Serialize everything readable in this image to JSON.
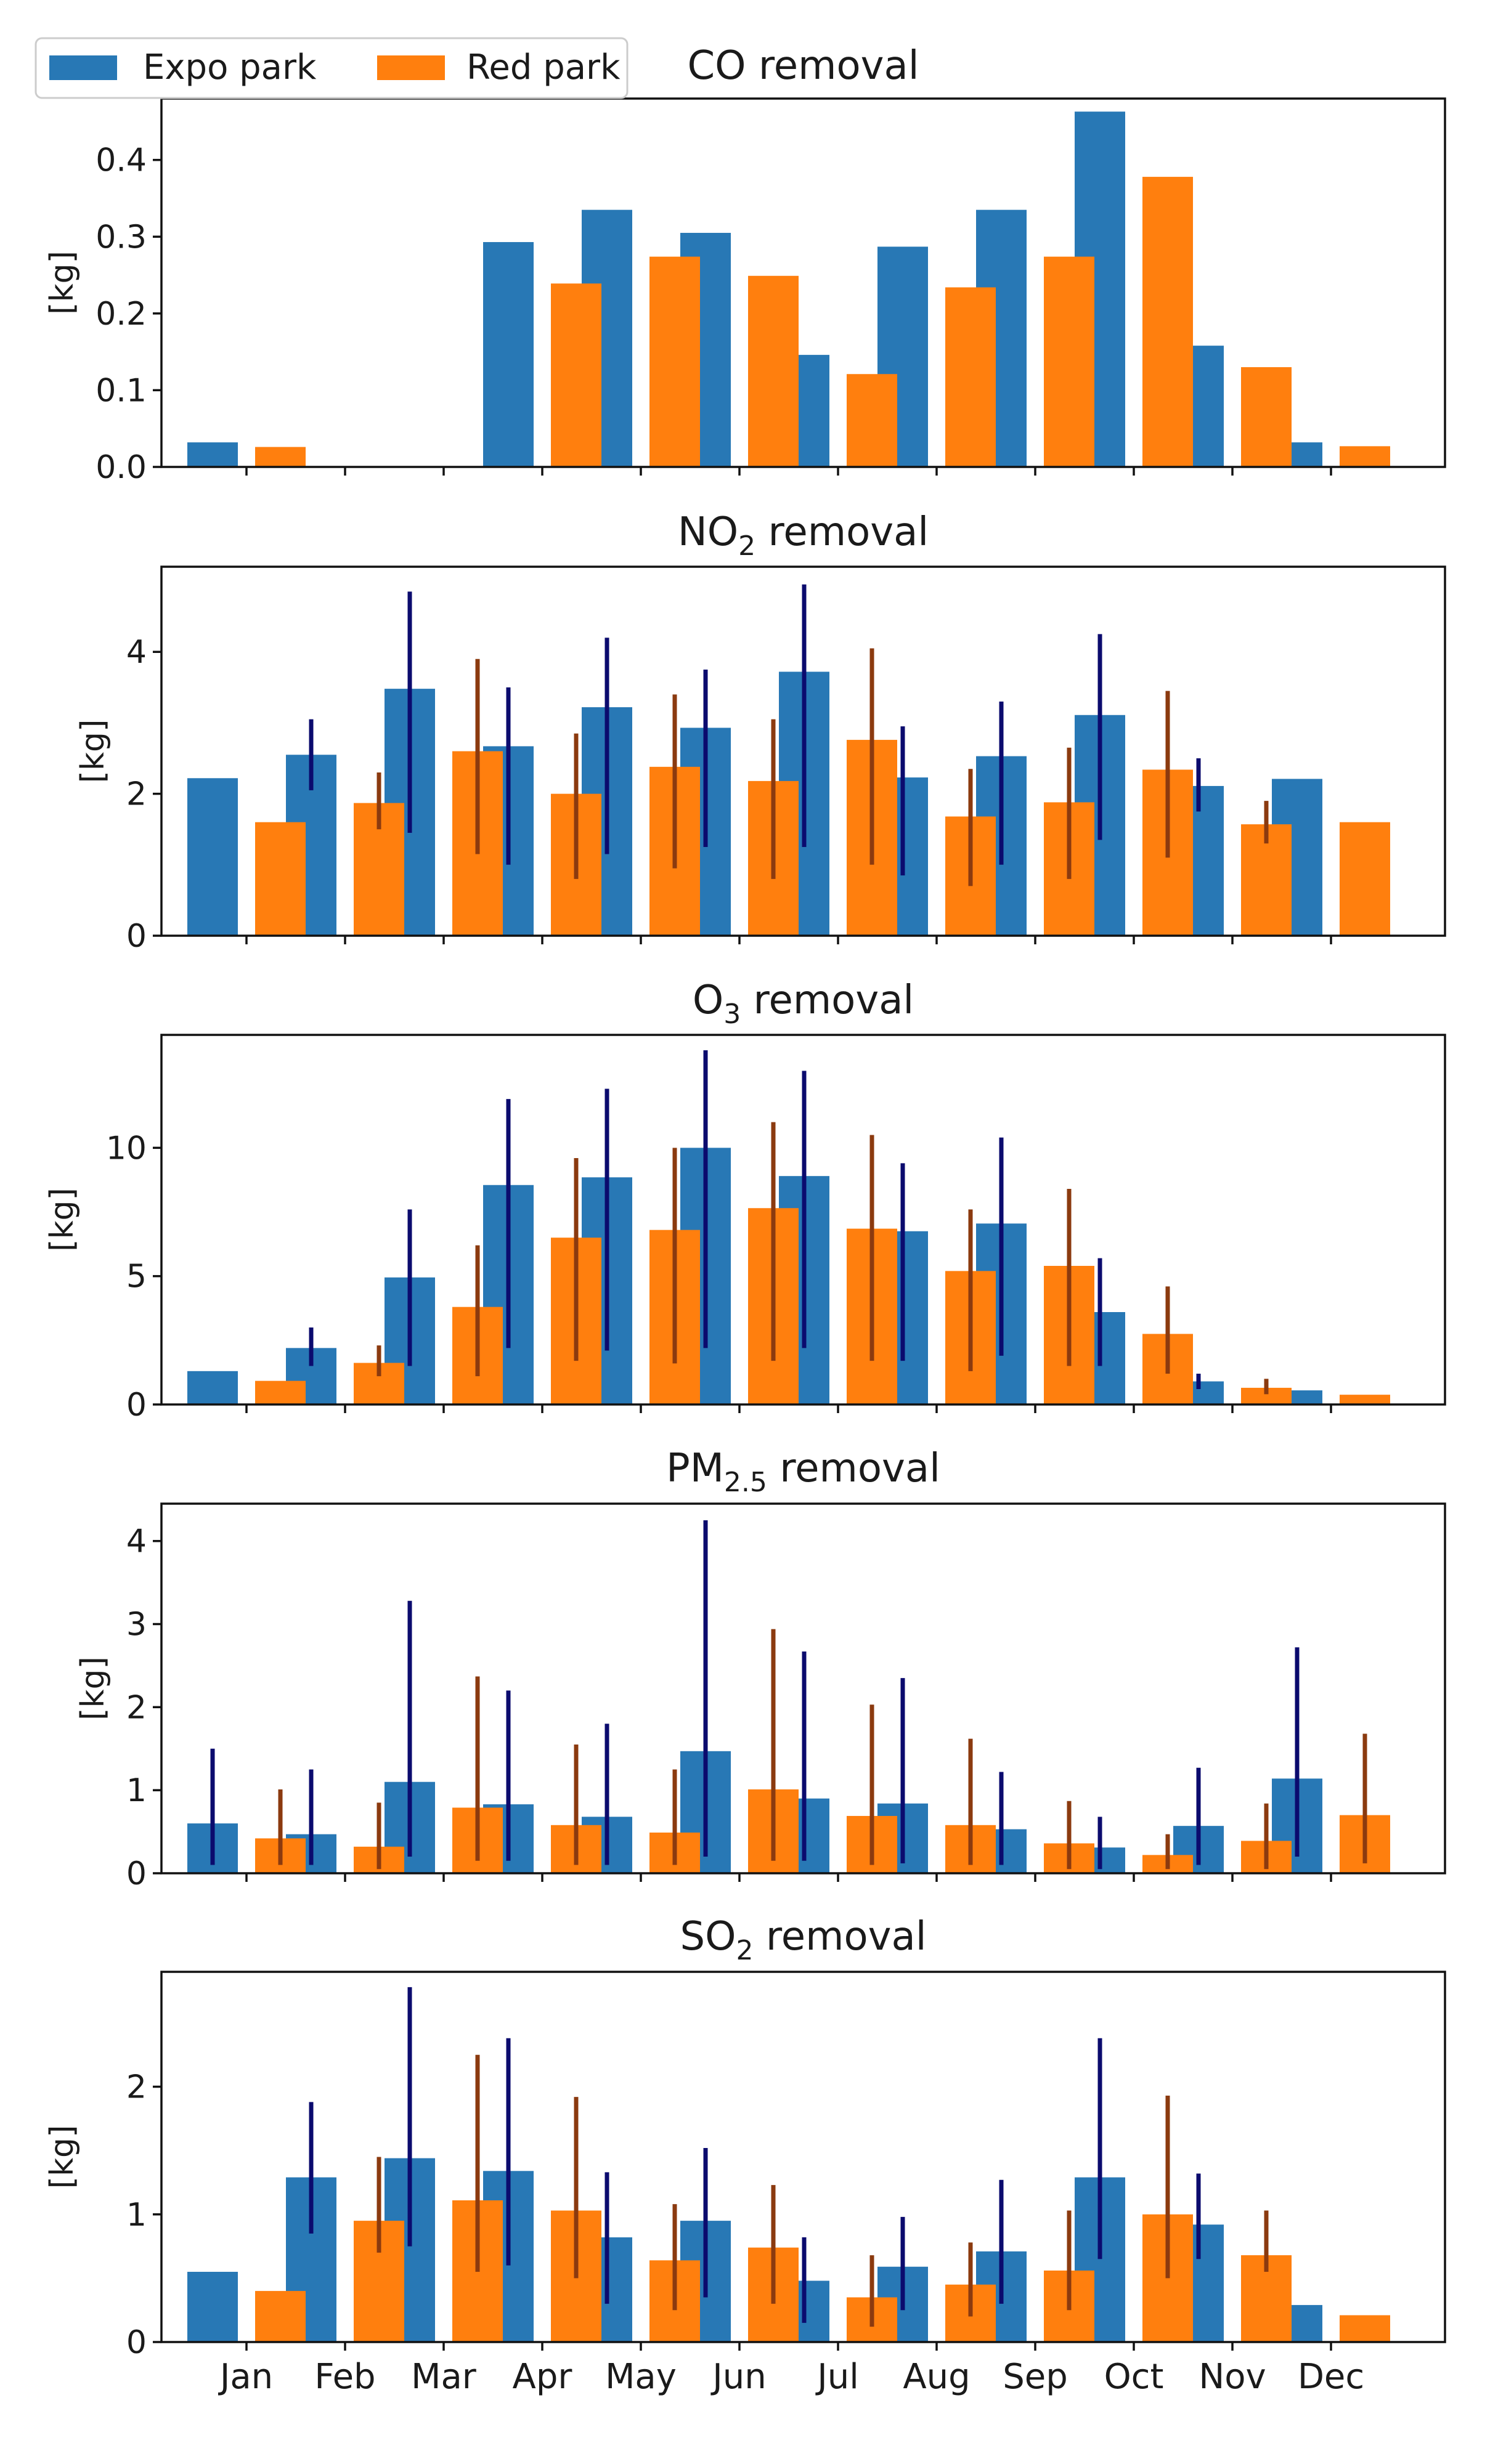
{
  "colors": {
    "expo": "#2878b5",
    "red": "#ff7f0e",
    "expo_err": "#0b0b6e",
    "red_err": "#8b3a0f"
  },
  "legend": {
    "expo_label": "Expo park",
    "red_label": "Red park",
    "placement": "upper-left of first panel"
  },
  "months": [
    "Jan",
    "Feb",
    "Mar",
    "Apr",
    "May",
    "Jun",
    "Jul",
    "Aug",
    "Sep",
    "Oct",
    "Nov",
    "Dec"
  ],
  "chart_data": [
    {
      "type": "bar",
      "title_main": "CO removal",
      "title_sub": "",
      "title_after": "",
      "ylabel": "[kg]",
      "ylim": [
        0,
        0.48
      ],
      "yticks": [
        0.0,
        0.1,
        0.2,
        0.3,
        0.4
      ],
      "ytick_labels": [
        "0.0",
        "0.1",
        "0.2",
        "0.3",
        "0.4"
      ],
      "series": [
        {
          "name": "Expo park",
          "values": [
            0.032,
            0,
            0,
            0.293,
            0.335,
            0.305,
            0.146,
            0.287,
            0.335,
            0.463,
            0.158,
            0.032
          ],
          "err_low": [
            null,
            null,
            null,
            null,
            null,
            null,
            null,
            null,
            null,
            null,
            null,
            null
          ],
          "err_high": [
            null,
            null,
            null,
            null,
            null,
            null,
            null,
            null,
            null,
            null,
            null,
            null
          ]
        },
        {
          "name": "Red park",
          "values": [
            0.026,
            0,
            0,
            0.239,
            0.274,
            0.249,
            0.121,
            0.234,
            0.274,
            0.378,
            0.13,
            0.027
          ],
          "err_low": [
            null,
            null,
            null,
            null,
            null,
            null,
            null,
            null,
            null,
            null,
            null,
            null
          ],
          "err_high": [
            null,
            null,
            null,
            null,
            null,
            null,
            null,
            null,
            null,
            null,
            null,
            null
          ]
        }
      ]
    },
    {
      "type": "bar",
      "title_main": "NO",
      "title_sub": "2",
      "title_after": " removal",
      "ylabel": "[kg]",
      "ylim": [
        0,
        5.2
      ],
      "yticks": [
        0,
        2,
        4
      ],
      "ytick_labels": [
        "0",
        "2",
        "4"
      ],
      "series": [
        {
          "name": "Expo park",
          "values": [
            2.22,
            2.55,
            3.48,
            2.67,
            3.22,
            2.93,
            3.72,
            2.23,
            2.53,
            3.11,
            2.11,
            2.21
          ],
          "err_low": [
            null,
            2.05,
            1.45,
            1.0,
            1.15,
            1.25,
            1.25,
            0.85,
            1.0,
            1.35,
            1.75,
            null
          ],
          "err_high": [
            null,
            3.05,
            4.85,
            3.5,
            4.2,
            3.75,
            4.95,
            2.95,
            3.3,
            4.25,
            2.5,
            null
          ]
        },
        {
          "name": "Red park",
          "values": [
            1.6,
            1.87,
            2.6,
            2.0,
            2.38,
            2.18,
            2.76,
            1.68,
            1.88,
            2.34,
            1.57,
            1.6
          ],
          "err_low": [
            null,
            1.5,
            1.15,
            0.8,
            0.95,
            0.8,
            1.0,
            0.7,
            0.8,
            1.1,
            1.3,
            null
          ],
          "err_high": [
            null,
            2.3,
            3.9,
            2.85,
            3.4,
            3.05,
            4.05,
            2.35,
            2.65,
            3.45,
            1.9,
            null
          ]
        }
      ]
    },
    {
      "type": "bar",
      "title_main": "O",
      "title_sub": "3",
      "title_after": " removal",
      "ylabel": "[kg]",
      "ylim": [
        0,
        14.4
      ],
      "yticks": [
        0,
        5,
        10
      ],
      "ytick_labels": [
        "0",
        "5",
        "10"
      ],
      "series": [
        {
          "name": "Expo park",
          "values": [
            1.3,
            2.2,
            4.95,
            8.55,
            8.85,
            10.0,
            8.9,
            6.75,
            7.05,
            3.6,
            0.9,
            0.55
          ],
          "err_low": [
            null,
            1.5,
            1.5,
            2.2,
            2.1,
            2.2,
            2.2,
            1.7,
            1.9,
            1.5,
            0.6,
            null
          ],
          "err_high": [
            null,
            3.0,
            7.6,
            11.9,
            12.3,
            13.8,
            13.0,
            9.4,
            10.4,
            5.7,
            1.2,
            null
          ]
        },
        {
          "name": "Red park",
          "values": [
            0.92,
            1.62,
            3.8,
            6.5,
            6.8,
            7.65,
            6.85,
            5.2,
            5.4,
            2.75,
            0.65,
            0.38
          ],
          "err_low": [
            null,
            1.1,
            1.1,
            1.7,
            1.6,
            1.7,
            1.7,
            1.3,
            1.5,
            1.2,
            0.4,
            null
          ],
          "err_high": [
            null,
            2.3,
            6.2,
            9.6,
            10.0,
            11.0,
            10.5,
            7.6,
            8.4,
            4.6,
            1.0,
            null
          ]
        }
      ]
    },
    {
      "type": "bar",
      "title_main": "PM",
      "title_sub": "2.5",
      "title_after": " removal",
      "ylabel": "[kg]",
      "ylim": [
        0,
        4.45
      ],
      "yticks": [
        0,
        1,
        2,
        3,
        4
      ],
      "ytick_labels": [
        "0",
        "1",
        "2",
        "3",
        "4"
      ],
      "series": [
        {
          "name": "Expo park",
          "values": [
            0.6,
            0.47,
            1.1,
            0.83,
            0.68,
            1.47,
            0.9,
            0.84,
            0.53,
            0.31,
            0.57,
            1.14
          ],
          "err_low": [
            0.1,
            0.1,
            0.2,
            0.15,
            0.1,
            0.2,
            0.15,
            0.12,
            0.1,
            0.05,
            0.1,
            0.2
          ],
          "err_high": [
            1.5,
            1.25,
            3.28,
            2.2,
            1.8,
            4.25,
            2.67,
            2.35,
            1.22,
            0.68,
            1.27,
            2.72
          ]
        },
        {
          "name": "Red park",
          "values": [
            0.42,
            0.32,
            0.79,
            0.58,
            0.49,
            1.01,
            0.69,
            0.58,
            0.36,
            0.22,
            0.39,
            0.7
          ],
          "err_low": [
            0.1,
            0.05,
            0.15,
            0.1,
            0.1,
            0.15,
            0.1,
            0.1,
            0.05,
            0.05,
            0.05,
            0.12
          ],
          "err_high": [
            1.01,
            0.85,
            2.37,
            1.55,
            1.25,
            2.94,
            2.03,
            1.62,
            0.87,
            0.47,
            0.84,
            1.68
          ]
        }
      ]
    },
    {
      "type": "bar",
      "title_main": "SO",
      "title_sub": "2",
      "title_after": " removal",
      "ylabel": "[kg]",
      "ylim": [
        0,
        2.9
      ],
      "yticks": [
        0,
        1,
        2
      ],
      "ytick_labels": [
        "0",
        "1",
        "2"
      ],
      "series": [
        {
          "name": "Expo park",
          "values": [
            0.55,
            1.29,
            1.44,
            1.34,
            0.82,
            0.95,
            0.48,
            0.59,
            0.71,
            1.29,
            0.92,
            0.29
          ],
          "err_low": [
            null,
            0.85,
            0.75,
            0.6,
            0.3,
            0.35,
            0.15,
            0.25,
            0.3,
            0.65,
            0.65,
            null
          ],
          "err_high": [
            null,
            1.88,
            2.78,
            2.38,
            1.33,
            1.52,
            0.82,
            0.98,
            1.27,
            2.38,
            1.32,
            null
          ]
        },
        {
          "name": "Red park",
          "values": [
            0.4,
            0.95,
            1.11,
            1.03,
            0.64,
            0.74,
            0.35,
            0.45,
            0.56,
            1.0,
            0.68,
            0.21
          ],
          "err_low": [
            null,
            0.7,
            0.55,
            0.5,
            0.25,
            0.3,
            0.12,
            0.2,
            0.25,
            0.5,
            0.55,
            null
          ],
          "err_high": [
            null,
            1.45,
            2.25,
            1.92,
            1.08,
            1.23,
            0.68,
            0.78,
            1.03,
            1.93,
            1.03,
            null
          ]
        }
      ]
    }
  ]
}
